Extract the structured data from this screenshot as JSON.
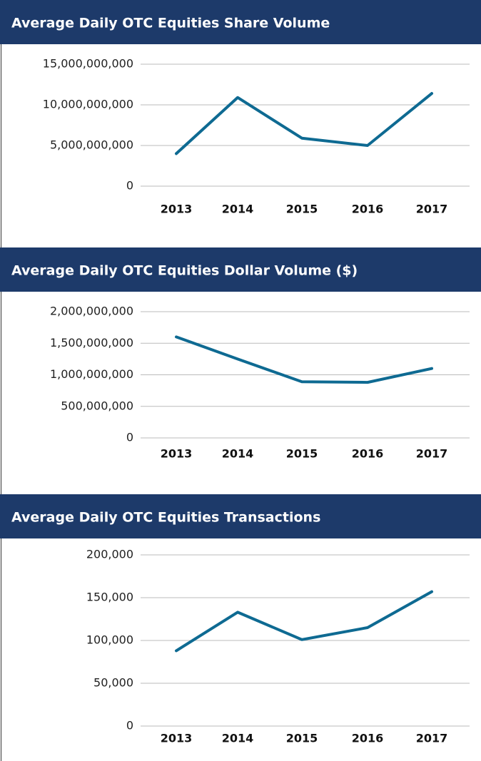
{
  "chart_data": [
    {
      "type": "line",
      "title": "Average Daily OTC Equities Share Volume",
      "categories": [
        "2013",
        "2014",
        "2015",
        "2016",
        "2017"
      ],
      "series": [
        {
          "color": "#0e6a92",
          "values": [
            4000000000,
            10900000000,
            5900000000,
            5000000000,
            11400000000
          ]
        }
      ],
      "ylim": [
        0,
        15000000000
      ],
      "yticks": [
        0,
        {
          "value": 5000000000,
          "label": "5,000,000,000"
        },
        {
          "value": 10000000000,
          "label": "10,000,000,000"
        },
        {
          "value": 15000000000,
          "label": "15,000,000,000"
        }
      ],
      "grid": true
    },
    {
      "type": "line",
      "title": "Average Daily OTC Equities Dollar Volume ($)",
      "categories": [
        "2013",
        "2014",
        "2015",
        "2016",
        "2017"
      ],
      "series": [
        {
          "color": "#0e6a92",
          "values": [
            1600000000,
            1250000000,
            890000000,
            880000000,
            1100000000
          ]
        }
      ],
      "ylim": [
        0,
        2000000000
      ],
      "yticks": [
        0,
        {
          "value": 500000000,
          "label": "500,000,000"
        },
        {
          "value": 1000000000,
          "label": "1,000,000,000"
        },
        {
          "value": 1500000000,
          "label": "1,500,000,000"
        },
        {
          "value": 2000000000,
          "label": "2,000,000,000"
        }
      ],
      "grid": true
    },
    {
      "type": "line",
      "title": "Average Daily OTC Equities Transactions",
      "categories": [
        "2013",
        "2014",
        "2015",
        "2016",
        "2017"
      ],
      "series": [
        {
          "color": "#0e6a92",
          "values": [
            88000,
            133000,
            101000,
            115000,
            157000
          ]
        }
      ],
      "ylim": [
        0,
        200000
      ],
      "yticks": [
        0,
        {
          "value": 50000,
          "label": "50,000"
        },
        {
          "value": 100000,
          "label": "100,000"
        },
        {
          "value": 150000,
          "label": "150,000"
        },
        {
          "value": 200000,
          "label": "200,000"
        }
      ],
      "grid": true
    }
  ]
}
